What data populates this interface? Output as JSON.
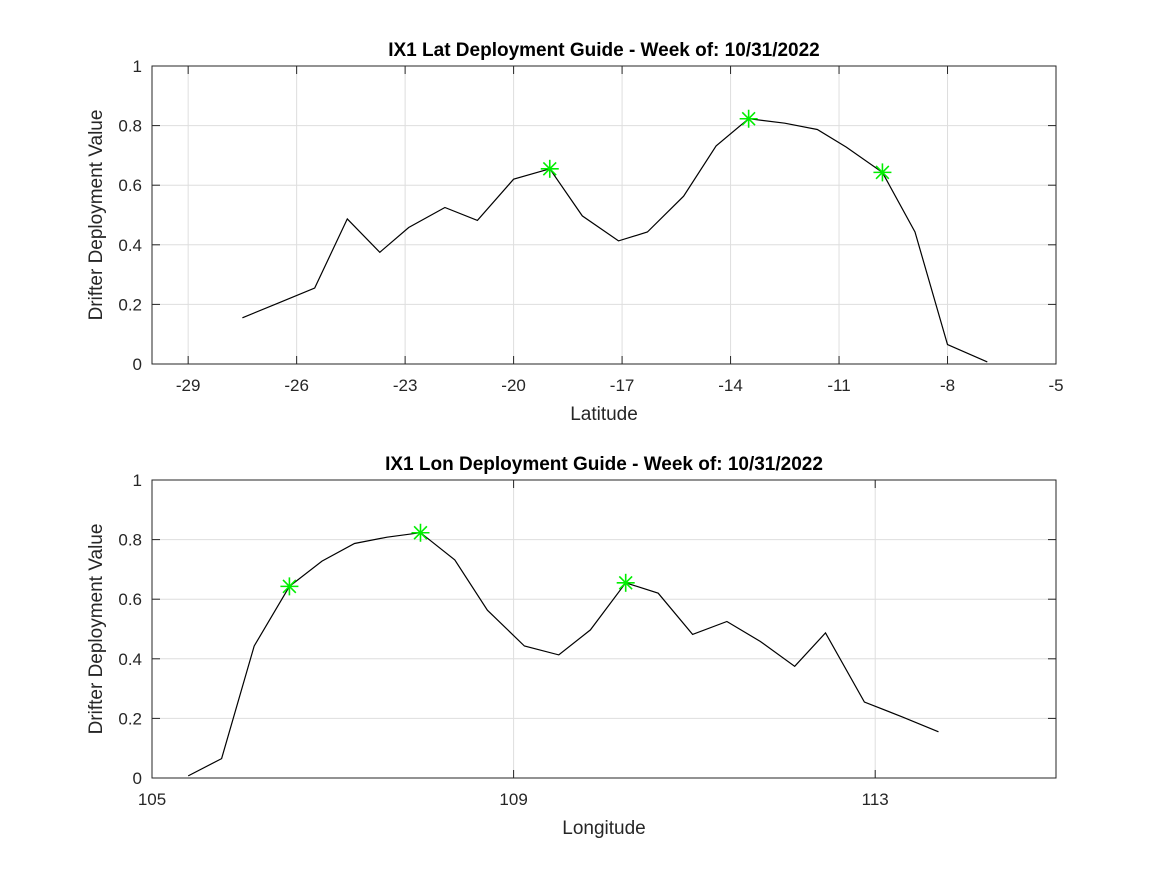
{
  "chart_data": [
    {
      "type": "line",
      "title": "IX1 Lat Deployment Guide - Week of: 10/31/2022",
      "xlabel": "Latitude",
      "ylabel": "Drifter Deployment Value",
      "xlim": [
        -30,
        -5
      ],
      "ylim": [
        0,
        1
      ],
      "xticks": [
        -29,
        -26,
        -23,
        -20,
        -17,
        -14,
        -11,
        -8,
        -5
      ],
      "yticks": [
        0,
        0.2,
        0.4,
        0.6,
        0.8,
        1
      ],
      "grid": true,
      "line_color": "#000000",
      "marker_color": "#00ee00",
      "x": [
        -27.5,
        -26.5,
        -25.5,
        -24.6,
        -23.7,
        -22.9,
        -21.9,
        -21.0,
        -20.0,
        -19.0,
        -18.1,
        -17.1,
        -16.3,
        -15.3,
        -14.4,
        -13.5,
        -12.5,
        -11.6,
        -10.8,
        -9.8,
        -8.9,
        -8.0,
        -6.9
      ],
      "y": [
        0.155,
        0.205,
        0.255,
        0.487,
        0.375,
        0.458,
        0.525,
        0.482,
        0.62,
        0.655,
        0.497,
        0.413,
        0.443,
        0.563,
        0.732,
        0.823,
        0.808,
        0.787,
        0.728,
        0.643,
        0.443,
        0.065,
        0.007
      ],
      "markers_x": [
        -19.0,
        -13.5,
        -9.8
      ],
      "markers_y": [
        0.655,
        0.823,
        0.643
      ]
    },
    {
      "type": "line",
      "title": "IX1 Lon Deployment Guide - Week of: 10/31/2022",
      "xlabel": "Longitude",
      "ylabel": "Drifter Deployment Value",
      "xlim": [
        105,
        115
      ],
      "ylim": [
        0,
        1
      ],
      "xticks": [
        105,
        109,
        113
      ],
      "yticks": [
        0,
        0.2,
        0.4,
        0.6,
        0.8,
        1
      ],
      "grid": true,
      "line_color": "#000000",
      "marker_color": "#00ee00",
      "x": [
        105.4,
        105.77,
        106.13,
        106.52,
        106.88,
        107.24,
        107.6,
        107.97,
        108.35,
        108.71,
        109.12,
        109.5,
        109.85,
        110.24,
        110.6,
        110.98,
        111.36,
        111.73,
        112.11,
        112.45,
        112.88,
        113.3,
        113.7
      ],
      "y": [
        0.007,
        0.065,
        0.443,
        0.643,
        0.728,
        0.787,
        0.808,
        0.823,
        0.732,
        0.563,
        0.443,
        0.413,
        0.497,
        0.655,
        0.62,
        0.482,
        0.525,
        0.458,
        0.375,
        0.487,
        0.255,
        0.205,
        0.155
      ],
      "markers_x": [
        106.52,
        107.97,
        110.24
      ],
      "markers_y": [
        0.643,
        0.823,
        0.655
      ]
    }
  ]
}
